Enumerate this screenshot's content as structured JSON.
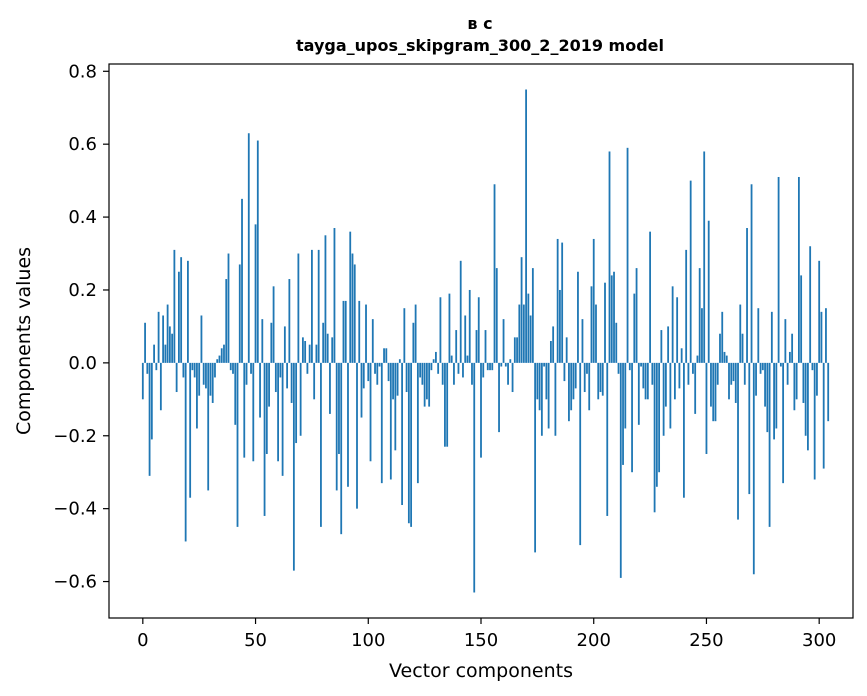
{
  "chart_data": {
    "type": "bar",
    "title_line1": "в с",
    "title_line2": "tayga_upos_skipgram_300_2_2019 model",
    "xlabel": "Vector components",
    "ylabel": "Components values",
    "xlim": [
      -15,
      315
    ],
    "ylim": [
      -0.7,
      0.82
    ],
    "xticks": [
      0,
      50,
      100,
      150,
      200,
      250,
      300
    ],
    "xtick_labels": [
      "0",
      "50",
      "100",
      "150",
      "200",
      "250",
      "300"
    ],
    "yticks": [
      -0.6,
      -0.4,
      -0.2,
      0.0,
      0.2,
      0.4,
      0.6,
      0.8
    ],
    "ytick_labels": [
      "−0.6",
      "−0.4",
      "−0.2",
      "0.0",
      "0.2",
      "0.4",
      "0.6",
      "0.8"
    ],
    "color": "#1f77b4",
    "values": [
      -0.1,
      0.11,
      -0.03,
      -0.31,
      -0.21,
      0.05,
      -0.02,
      0.14,
      -0.13,
      0.13,
      0.05,
      0.16,
      0.1,
      0.08,
      0.31,
      -0.08,
      0.25,
      0.29,
      -0.04,
      -0.49,
      0.28,
      -0.37,
      -0.02,
      -0.04,
      -0.18,
      -0.09,
      0.13,
      -0.06,
      -0.07,
      -0.35,
      -0.09,
      -0.11,
      -0.04,
      0.01,
      0.02,
      0.04,
      0.05,
      0.23,
      0.3,
      -0.02,
      -0.03,
      -0.17,
      -0.45,
      0.27,
      0.45,
      -0.26,
      -0.06,
      0.63,
      -0.03,
      -0.27,
      0.38,
      0.61,
      -0.15,
      0.12,
      -0.42,
      -0.25,
      -0.12,
      0.11,
      0.21,
      -0.08,
      -0.27,
      -0.04,
      -0.31,
      0.1,
      -0.07,
      0.23,
      -0.11,
      -0.57,
      -0.22,
      0.3,
      -0.2,
      0.07,
      0.06,
      -0.03,
      0.05,
      0.31,
      -0.1,
      0.05,
      0.31,
      -0.45,
      0.11,
      0.35,
      0.08,
      -0.14,
      0.07,
      0.37,
      -0.35,
      -0.25,
      -0.47,
      0.17,
      0.17,
      -0.34,
      0.36,
      0.3,
      0.27,
      -0.4,
      0.17,
      -0.15,
      -0.07,
      0.16,
      -0.05,
      -0.27,
      0.12,
      -0.03,
      -0.06,
      -0.01,
      -0.33,
      0.04,
      0.04,
      -0.05,
      -0.32,
      -0.1,
      -0.24,
      -0.09,
      0.01,
      -0.39,
      0.15,
      -0.08,
      -0.44,
      -0.45,
      0.11,
      0.16,
      -0.33,
      -0.04,
      -0.06,
      -0.12,
      -0.1,
      -0.12,
      -0.02,
      0.01,
      0.03,
      -0.03,
      0.18,
      -0.06,
      -0.23,
      -0.23,
      0.19,
      0.02,
      -0.06,
      0.09,
      -0.03,
      0.28,
      -0.04,
      0.13,
      0.02,
      0.2,
      -0.06,
      -0.63,
      0.09,
      0.18,
      -0.26,
      -0.04,
      0.09,
      -0.02,
      -0.02,
      -0.02,
      0.49,
      0.26,
      -0.19,
      -0.01,
      0.12,
      -0.01,
      -0.06,
      0.01,
      -0.08,
      0.07,
      0.07,
      0.16,
      0.29,
      0.16,
      0.75,
      0.19,
      0.13,
      0.26,
      -0.52,
      -0.1,
      -0.13,
      -0.2,
      -0.01,
      -0.1,
      -0.18,
      0.06,
      0.1,
      -0.2,
      0.34,
      0.2,
      0.33,
      -0.05,
      0.07,
      -0.16,
      -0.13,
      -0.1,
      -0.07,
      0.25,
      -0.5,
      0.12,
      -0.08,
      -0.03,
      -0.13,
      0.21,
      0.34,
      0.16,
      -0.1,
      -0.08,
      -0.09,
      0.22,
      -0.42,
      0.58,
      0.24,
      0.25,
      0.11,
      -0.03,
      -0.59,
      -0.28,
      -0.18,
      0.59,
      -0.02,
      -0.3,
      0.19,
      0.26,
      -0.17,
      -0.01,
      -0.07,
      -0.1,
      -0.1,
      0.36,
      -0.06,
      -0.41,
      -0.34,
      -0.3,
      0.09,
      -0.2,
      -0.12,
      0.1,
      -0.18,
      0.21,
      -0.1,
      0.18,
      -0.07,
      0.04,
      -0.37,
      0.31,
      -0.06,
      0.5,
      -0.03,
      -0.14,
      0.02,
      0.26,
      0.15,
      0.58,
      -0.25,
      0.39,
      -0.12,
      -0.16,
      -0.16,
      -0.06,
      0.08,
      0.14,
      0.03,
      0.02,
      -0.1,
      -0.06,
      -0.05,
      -0.11,
      -0.43,
      0.16,
      0.08,
      -0.06,
      0.37,
      -0.36,
      0.49,
      -0.58,
      -0.09,
      0.15,
      -0.03,
      -0.02,
      -0.12,
      -0.19,
      -0.45,
      0.14,
      -0.21,
      -0.18,
      0.51,
      -0.01,
      -0.33,
      0.12,
      -0.06,
      0.03,
      0.08,
      -0.13,
      -0.1,
      0.51,
      0.24,
      -0.11,
      -0.2,
      -0.24,
      0.32,
      -0.02,
      -0.32,
      -0.09,
      0.28,
      0.14,
      -0.29,
      0.15,
      -0.16
    ]
  }
}
